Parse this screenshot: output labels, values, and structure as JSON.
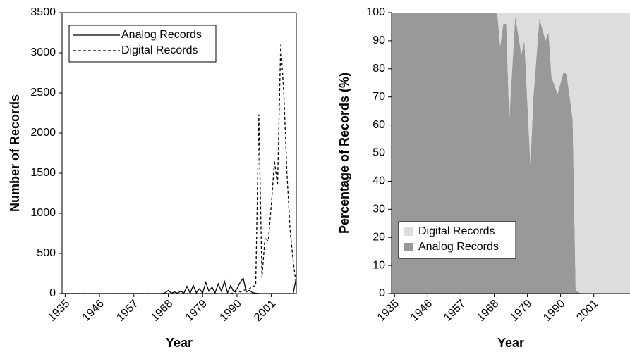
{
  "chart_data": [
    {
      "type": "line",
      "xlabel": "Year",
      "ylabel": "Number of Records",
      "x": [
        1934,
        1966,
        1967,
        1968,
        1969,
        1970,
        1971,
        1972,
        1973,
        1974,
        1975,
        1976,
        1977,
        1978,
        1979,
        1980,
        1981,
        1982,
        1983,
        1984,
        1985,
        1986,
        1987,
        1988,
        1989,
        1990,
        1991,
        1992,
        1993,
        1994,
        1995,
        1996,
        1997,
        1998,
        1999,
        2000,
        2001,
        2002,
        2003,
        2004,
        2005,
        2006,
        2007,
        2008,
        2009
      ],
      "series": [
        {
          "name": "Analog Records",
          "color": "#000000",
          "dash": "none",
          "values": [
            0,
            0,
            10,
            40,
            5,
            20,
            5,
            30,
            5,
            90,
            5,
            100,
            10,
            60,
            5,
            140,
            30,
            80,
            10,
            120,
            30,
            150,
            10,
            100,
            20,
            60,
            140,
            190,
            20,
            40,
            10,
            5,
            0,
            0,
            0,
            0,
            0,
            0,
            0,
            0,
            0,
            0,
            0,
            0,
            200
          ]
        },
        {
          "name": "Digital Records",
          "color": "#000000",
          "dash": "4 3",
          "values": [
            0,
            0,
            0,
            0,
            0,
            0,
            0,
            0,
            0,
            0,
            0,
            0,
            0,
            0,
            0,
            0,
            0,
            0,
            0,
            0,
            0,
            0,
            0,
            0,
            10,
            30,
            20,
            40,
            50,
            60,
            90,
            100,
            2230,
            200,
            700,
            650,
            1100,
            1650,
            1350,
            3100,
            2500,
            1500,
            800,
            400,
            100
          ]
        }
      ],
      "xlim": [
        1934,
        2009
      ],
      "xticks": [
        1935,
        1946,
        1957,
        1968,
        1979,
        1990,
        2001
      ],
      "ylim": [
        0,
        3500
      ],
      "yticks": [
        0,
        500,
        1000,
        1500,
        2000,
        2500,
        3000,
        3500
      ],
      "legend": "upper left"
    },
    {
      "type": "stacked-area",
      "xlabel": "Year",
      "ylabel": "Percentage of Records (%)",
      "x": [
        1934,
        1969,
        1970,
        1971,
        1972,
        1973,
        1975,
        1977,
        1978,
        1980,
        1981,
        1983,
        1985,
        1986,
        1987,
        1989,
        1991,
        1992,
        1994,
        1995,
        1997,
        2013
      ],
      "series": [
        {
          "name": "Analog Records",
          "color": "#999999",
          "values": [
            100,
            100,
            88,
            96,
            96,
            62,
            99,
            85,
            90,
            46,
            70,
            98,
            90,
            93,
            77,
            71,
            79,
            78,
            62,
            1,
            0,
            0
          ]
        },
        {
          "name": "Digital Records",
          "color": "#dddddd",
          "values": [
            0,
            0,
            12,
            4,
            4,
            38,
            1,
            15,
            10,
            54,
            30,
            2,
            10,
            7,
            23,
            29,
            21,
            22,
            38,
            99,
            100,
            100
          ]
        }
      ],
      "xlim": [
        1934,
        2013
      ],
      "xticks": [
        1935,
        1946,
        1957,
        1968,
        1979,
        1990,
        2001
      ],
      "ylim": [
        0,
        100
      ],
      "yticks": [
        0,
        10,
        20,
        30,
        40,
        50,
        60,
        70,
        80,
        90,
        100
      ],
      "legend": "lower left"
    }
  ]
}
